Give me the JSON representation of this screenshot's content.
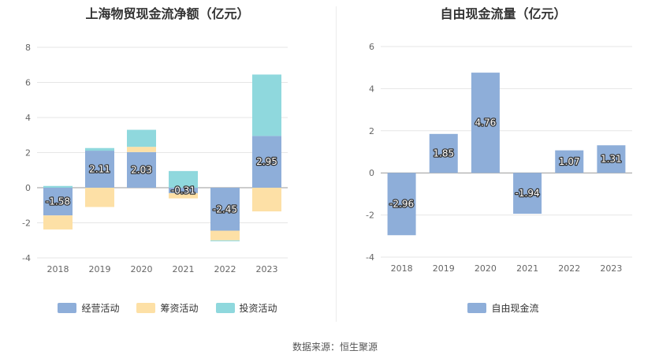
{
  "chart_data": [
    {
      "type": "bar",
      "stacked": true,
      "title": "上海物贸现金流净额（亿元）",
      "categories": [
        "2018",
        "2019",
        "2020",
        "2021",
        "2022",
        "2023"
      ],
      "ylim": [
        -4,
        8
      ],
      "yticks": [
        -4,
        -2,
        0,
        2,
        4,
        6,
        8
      ],
      "grid": true,
      "legend_position": "bottom",
      "series": [
        {
          "name": "经营活动",
          "color": "#8eaed9",
          "values": [
            -1.58,
            2.11,
            2.03,
            -0.31,
            -2.45,
            2.95
          ],
          "labels": [
            "-1.58",
            "2.11",
            "2.03",
            "-0.31",
            "-2.45",
            "2.95"
          ]
        },
        {
          "name": "筹资活动",
          "color": "#fde0a6",
          "values": [
            -0.8,
            -1.1,
            0.3,
            -0.3,
            -0.55,
            -1.35
          ]
        },
        {
          "name": "投资活动",
          "color": "#8fd8dd",
          "values": [
            0.1,
            0.15,
            0.97,
            0.95,
            -0.05,
            3.5
          ]
        }
      ]
    },
    {
      "type": "bar",
      "title": "自由现金流量（亿元）",
      "categories": [
        "2018",
        "2019",
        "2020",
        "2021",
        "2022",
        "2023"
      ],
      "ylim": [
        -4,
        6
      ],
      "yticks": [
        -4,
        -2,
        0,
        2,
        4,
        6
      ],
      "grid": true,
      "legend_position": "bottom",
      "series": [
        {
          "name": "自由现金流",
          "color": "#8eaed9",
          "values": [
            -2.96,
            1.85,
            4.76,
            -1.94,
            1.07,
            1.31
          ],
          "labels": [
            "-2.96",
            "1.85",
            "4.76",
            "-1.94",
            "1.07",
            "1.31"
          ]
        }
      ]
    }
  ],
  "footer": {
    "source": "数据来源：恒生聚源"
  }
}
